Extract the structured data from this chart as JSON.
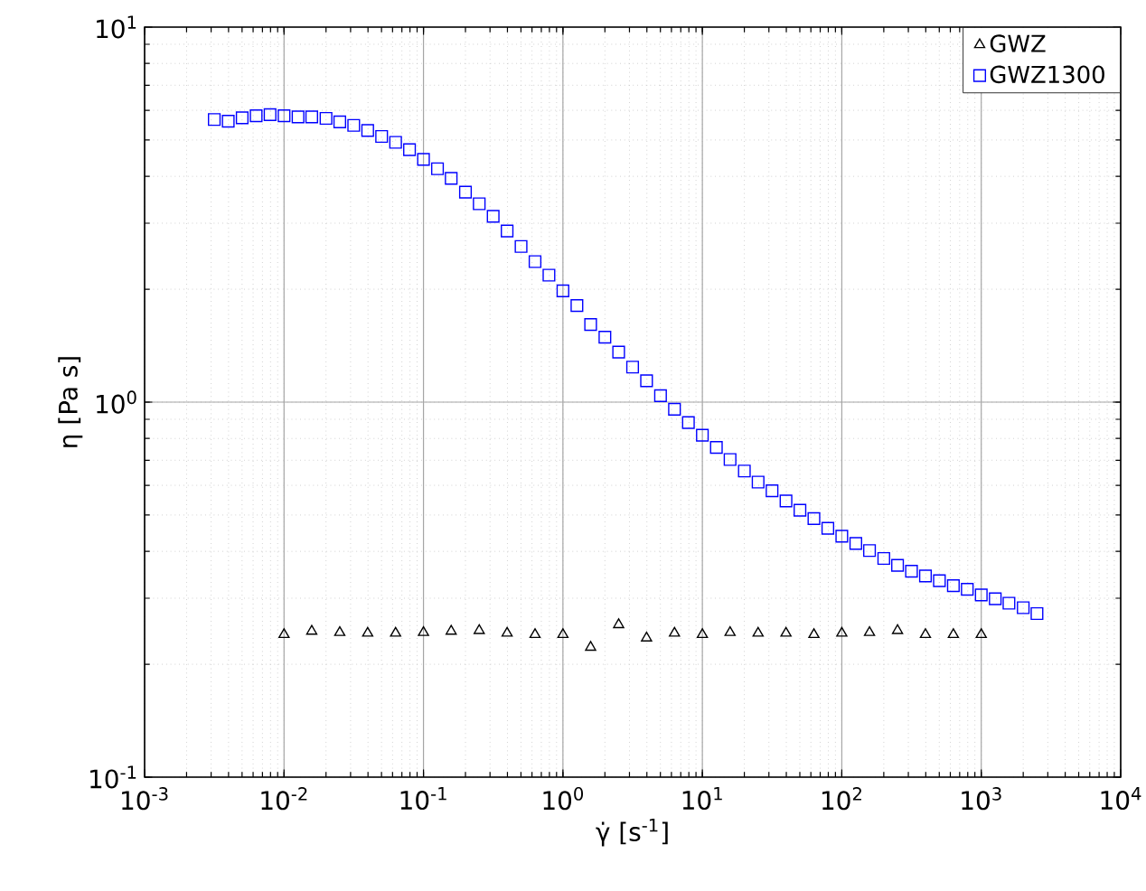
{
  "chart_data": {
    "type": "scatter",
    "xlabel": "γ̇  [s$^{-1}$]",
    "ylabel": "η [Pa s]",
    "log": "xy",
    "grid": true,
    "legend": "top right",
    "xlim": [
      0.001,
      10000
    ],
    "ylim": [
      0.1,
      10
    ],
    "xticks": [
      {
        "value": 0.001,
        "label": "10$^{-3}$"
      },
      {
        "value": 0.01,
        "label": "10$^{-2}$"
      },
      {
        "value": 0.1,
        "label": "10$^{-1}$"
      },
      {
        "value": 1,
        "label": "10$^{0}$"
      },
      {
        "value": 10,
        "label": "10$^{1}$"
      },
      {
        "value": 100,
        "label": "10$^{2}$"
      },
      {
        "value": 1000,
        "label": "10$^{3}$"
      },
      {
        "value": 10000,
        "label": "10$^{4}$"
      }
    ],
    "yticks": [
      {
        "value": 0.1,
        "label": "10$^{-1}$"
      },
      {
        "value": 1,
        "label": "10$^{0}$"
      },
      {
        "value": 10,
        "label": "10$^{1}$"
      }
    ],
    "series": [
      {
        "name": "GWZ",
        "color": "#000000",
        "marker": "triangle",
        "x": [
          0.01,
          0.0158,
          0.0251,
          0.0398,
          0.0631,
          0.1,
          0.158,
          0.251,
          0.398,
          0.631,
          1,
          1.58,
          2.51,
          3.98,
          6.31,
          10,
          15.8,
          25.1,
          39.8,
          63.1,
          100,
          158,
          251,
          398,
          631,
          1000
        ],
        "values": [
          0.24,
          0.245,
          0.243,
          0.242,
          0.242,
          0.243,
          0.245,
          0.246,
          0.242,
          0.24,
          0.24,
          0.222,
          0.255,
          0.235,
          0.242,
          0.24,
          0.243,
          0.242,
          0.242,
          0.24,
          0.242,
          0.243,
          0.246,
          0.24,
          0.24,
          0.24
        ]
      },
      {
        "name": "GWZ1300",
        "color": "#0000ff",
        "marker": "square",
        "x": [
          0.00316,
          0.00398,
          0.00501,
          0.00631,
          0.00794,
          0.01,
          0.0126,
          0.0158,
          0.02,
          0.0251,
          0.0316,
          0.0398,
          0.0501,
          0.0631,
          0.0794,
          0.1,
          0.126,
          0.158,
          0.2,
          0.251,
          0.316,
          0.398,
          0.501,
          0.631,
          0.794,
          1,
          1.26,
          1.58,
          2,
          2.51,
          3.16,
          3.98,
          5.01,
          6.31,
          7.94,
          10,
          12.6,
          15.8,
          20,
          25.1,
          31.6,
          39.8,
          50.1,
          63.1,
          79.4,
          100,
          126,
          158,
          200,
          251,
          316,
          398,
          501,
          631,
          794,
          1000,
          1260,
          1580,
          2000,
          2510
        ],
        "values": [
          5.67,
          5.61,
          5.73,
          5.8,
          5.84,
          5.8,
          5.76,
          5.76,
          5.71,
          5.59,
          5.47,
          5.3,
          5.11,
          4.93,
          4.71,
          4.44,
          4.19,
          3.95,
          3.63,
          3.38,
          3.13,
          2.86,
          2.6,
          2.37,
          2.18,
          1.98,
          1.81,
          1.61,
          1.49,
          1.36,
          1.24,
          1.14,
          1.04,
          0.957,
          0.882,
          0.816,
          0.757,
          0.703,
          0.655,
          0.612,
          0.58,
          0.545,
          0.515,
          0.489,
          0.461,
          0.439,
          0.42,
          0.402,
          0.383,
          0.367,
          0.354,
          0.344,
          0.334,
          0.324,
          0.317,
          0.306,
          0.299,
          0.291,
          0.283,
          0.273
        ]
      }
    ]
  }
}
